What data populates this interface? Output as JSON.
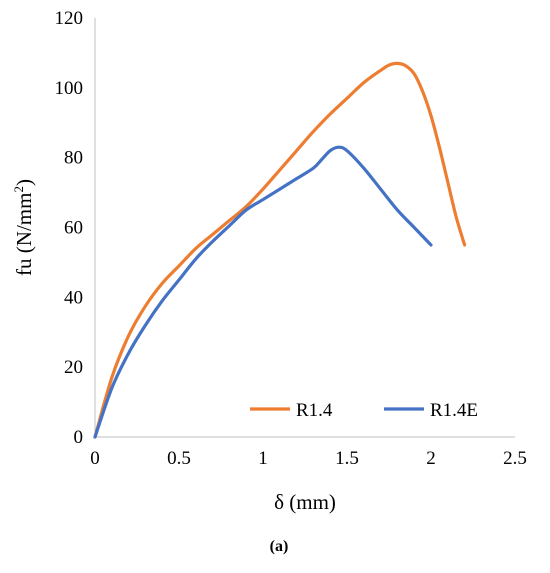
{
  "chart_data": {
    "type": "line",
    "title": "",
    "xlabel": "δ (mm)",
    "ylabel_main": "fu (N/mm",
    "ylabel_sup": "2",
    "ylabel_close": ")",
    "xlim": [
      0,
      2.5
    ],
    "ylim": [
      0,
      120
    ],
    "x_ticks": [
      0,
      0.5,
      1,
      1.5,
      2,
      2.5
    ],
    "x_tick_labels": [
      "0",
      "0.5",
      "1",
      "1.5",
      "2",
      "2.5"
    ],
    "y_ticks": [
      0,
      20,
      40,
      60,
      80,
      100,
      120
    ],
    "y_tick_labels": [
      "0",
      "20",
      "40",
      "60",
      "80",
      "100",
      "120"
    ],
    "grid": false,
    "legend_position": "bottom-right",
    "series": [
      {
        "name": "R1.4",
        "color": "#ED7D31",
        "x": [
          0,
          0.1,
          0.2,
          0.3,
          0.4,
          0.5,
          0.6,
          0.7,
          0.8,
          0.9,
          1.0,
          1.1,
          1.2,
          1.3,
          1.4,
          1.5,
          1.6,
          1.7,
          1.75,
          1.8,
          1.85,
          1.9,
          1.95,
          2.0,
          2.05,
          2.1,
          2.15,
          2.2
        ],
        "y": [
          0,
          17,
          29,
          37.5,
          44,
          49,
          54,
          58,
          62,
          66,
          71,
          76.5,
          82,
          87.5,
          92.5,
          97,
          101.5,
          105,
          106.5,
          107,
          106.3,
          104,
          99,
          92,
          83,
          73,
          63,
          55
        ]
      },
      {
        "name": "R1.4E",
        "color": "#4472C4",
        "x": [
          0,
          0.1,
          0.2,
          0.3,
          0.4,
          0.5,
          0.6,
          0.7,
          0.8,
          0.9,
          1.0,
          1.1,
          1.2,
          1.3,
          1.35,
          1.4,
          1.45,
          1.5,
          1.6,
          1.7,
          1.8,
          1.9,
          2.0
        ],
        "y": [
          0,
          14,
          24,
          32,
          39,
          45,
          51,
          56,
          60.5,
          65,
          68,
          71,
          74,
          77,
          79.5,
          82,
          83,
          82,
          77,
          71,
          65,
          60,
          55
        ]
      }
    ],
    "caption": "(a)"
  }
}
